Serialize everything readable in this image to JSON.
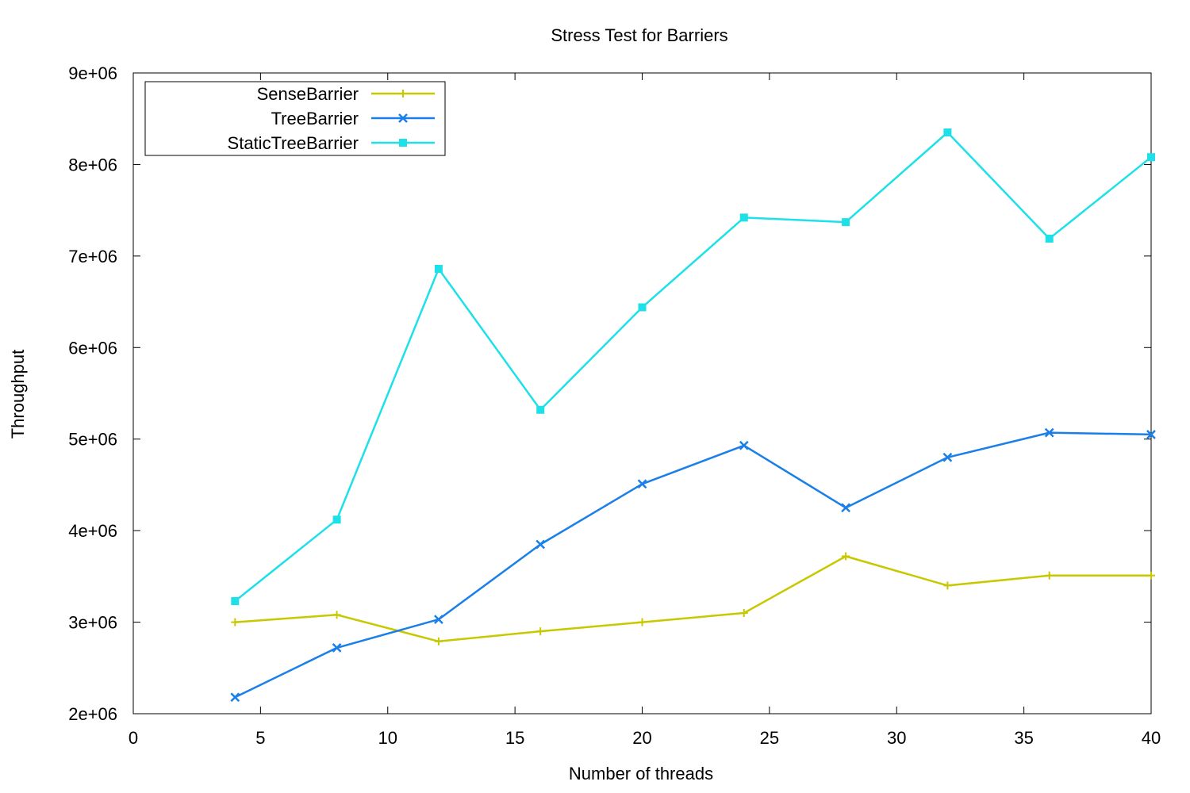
{
  "chart_data": {
    "type": "line",
    "title": "Stress Test for Barriers",
    "xlabel": "Number of threads",
    "ylabel": "Throughput",
    "xlim": [
      0,
      40
    ],
    "ylim": [
      2000000,
      9000000
    ],
    "xticks": [
      0,
      5,
      10,
      15,
      20,
      25,
      30,
      35,
      40
    ],
    "yticks": [
      2000000,
      3000000,
      4000000,
      5000000,
      6000000,
      7000000,
      8000000,
      9000000
    ],
    "xtick_labels": [
      "0",
      "5",
      "10",
      "15",
      "20",
      "25",
      "30",
      "35",
      "40"
    ],
    "ytick_labels": [
      "2e+06",
      "3e+06",
      "4e+06",
      "5e+06",
      "6e+06",
      "7e+06",
      "8e+06",
      "9e+06"
    ],
    "grid": false,
    "legend_position": "top-left",
    "x": [
      4,
      8,
      12,
      16,
      20,
      24,
      28,
      32,
      36,
      40
    ],
    "series": [
      {
        "name": "SenseBarrier",
        "color": "#c8c800",
        "marker": "plus",
        "values": [
          3000000,
          3080000,
          2790000,
          2900000,
          3000000,
          3100000,
          3720000,
          3400000,
          3510000,
          3510000
        ]
      },
      {
        "name": "TreeBarrier",
        "color": "#1a7fe8",
        "marker": "cross",
        "values": [
          2180000,
          2720000,
          3030000,
          3850000,
          4510000,
          4930000,
          4250000,
          4800000,
          5070000,
          5050000
        ]
      },
      {
        "name": "StaticTreeBarrier",
        "color": "#1ee0e8",
        "marker": "square",
        "values": [
          3230000,
          4120000,
          6860000,
          5320000,
          6440000,
          7420000,
          7370000,
          8350000,
          7190000,
          8080000
        ]
      }
    ]
  }
}
